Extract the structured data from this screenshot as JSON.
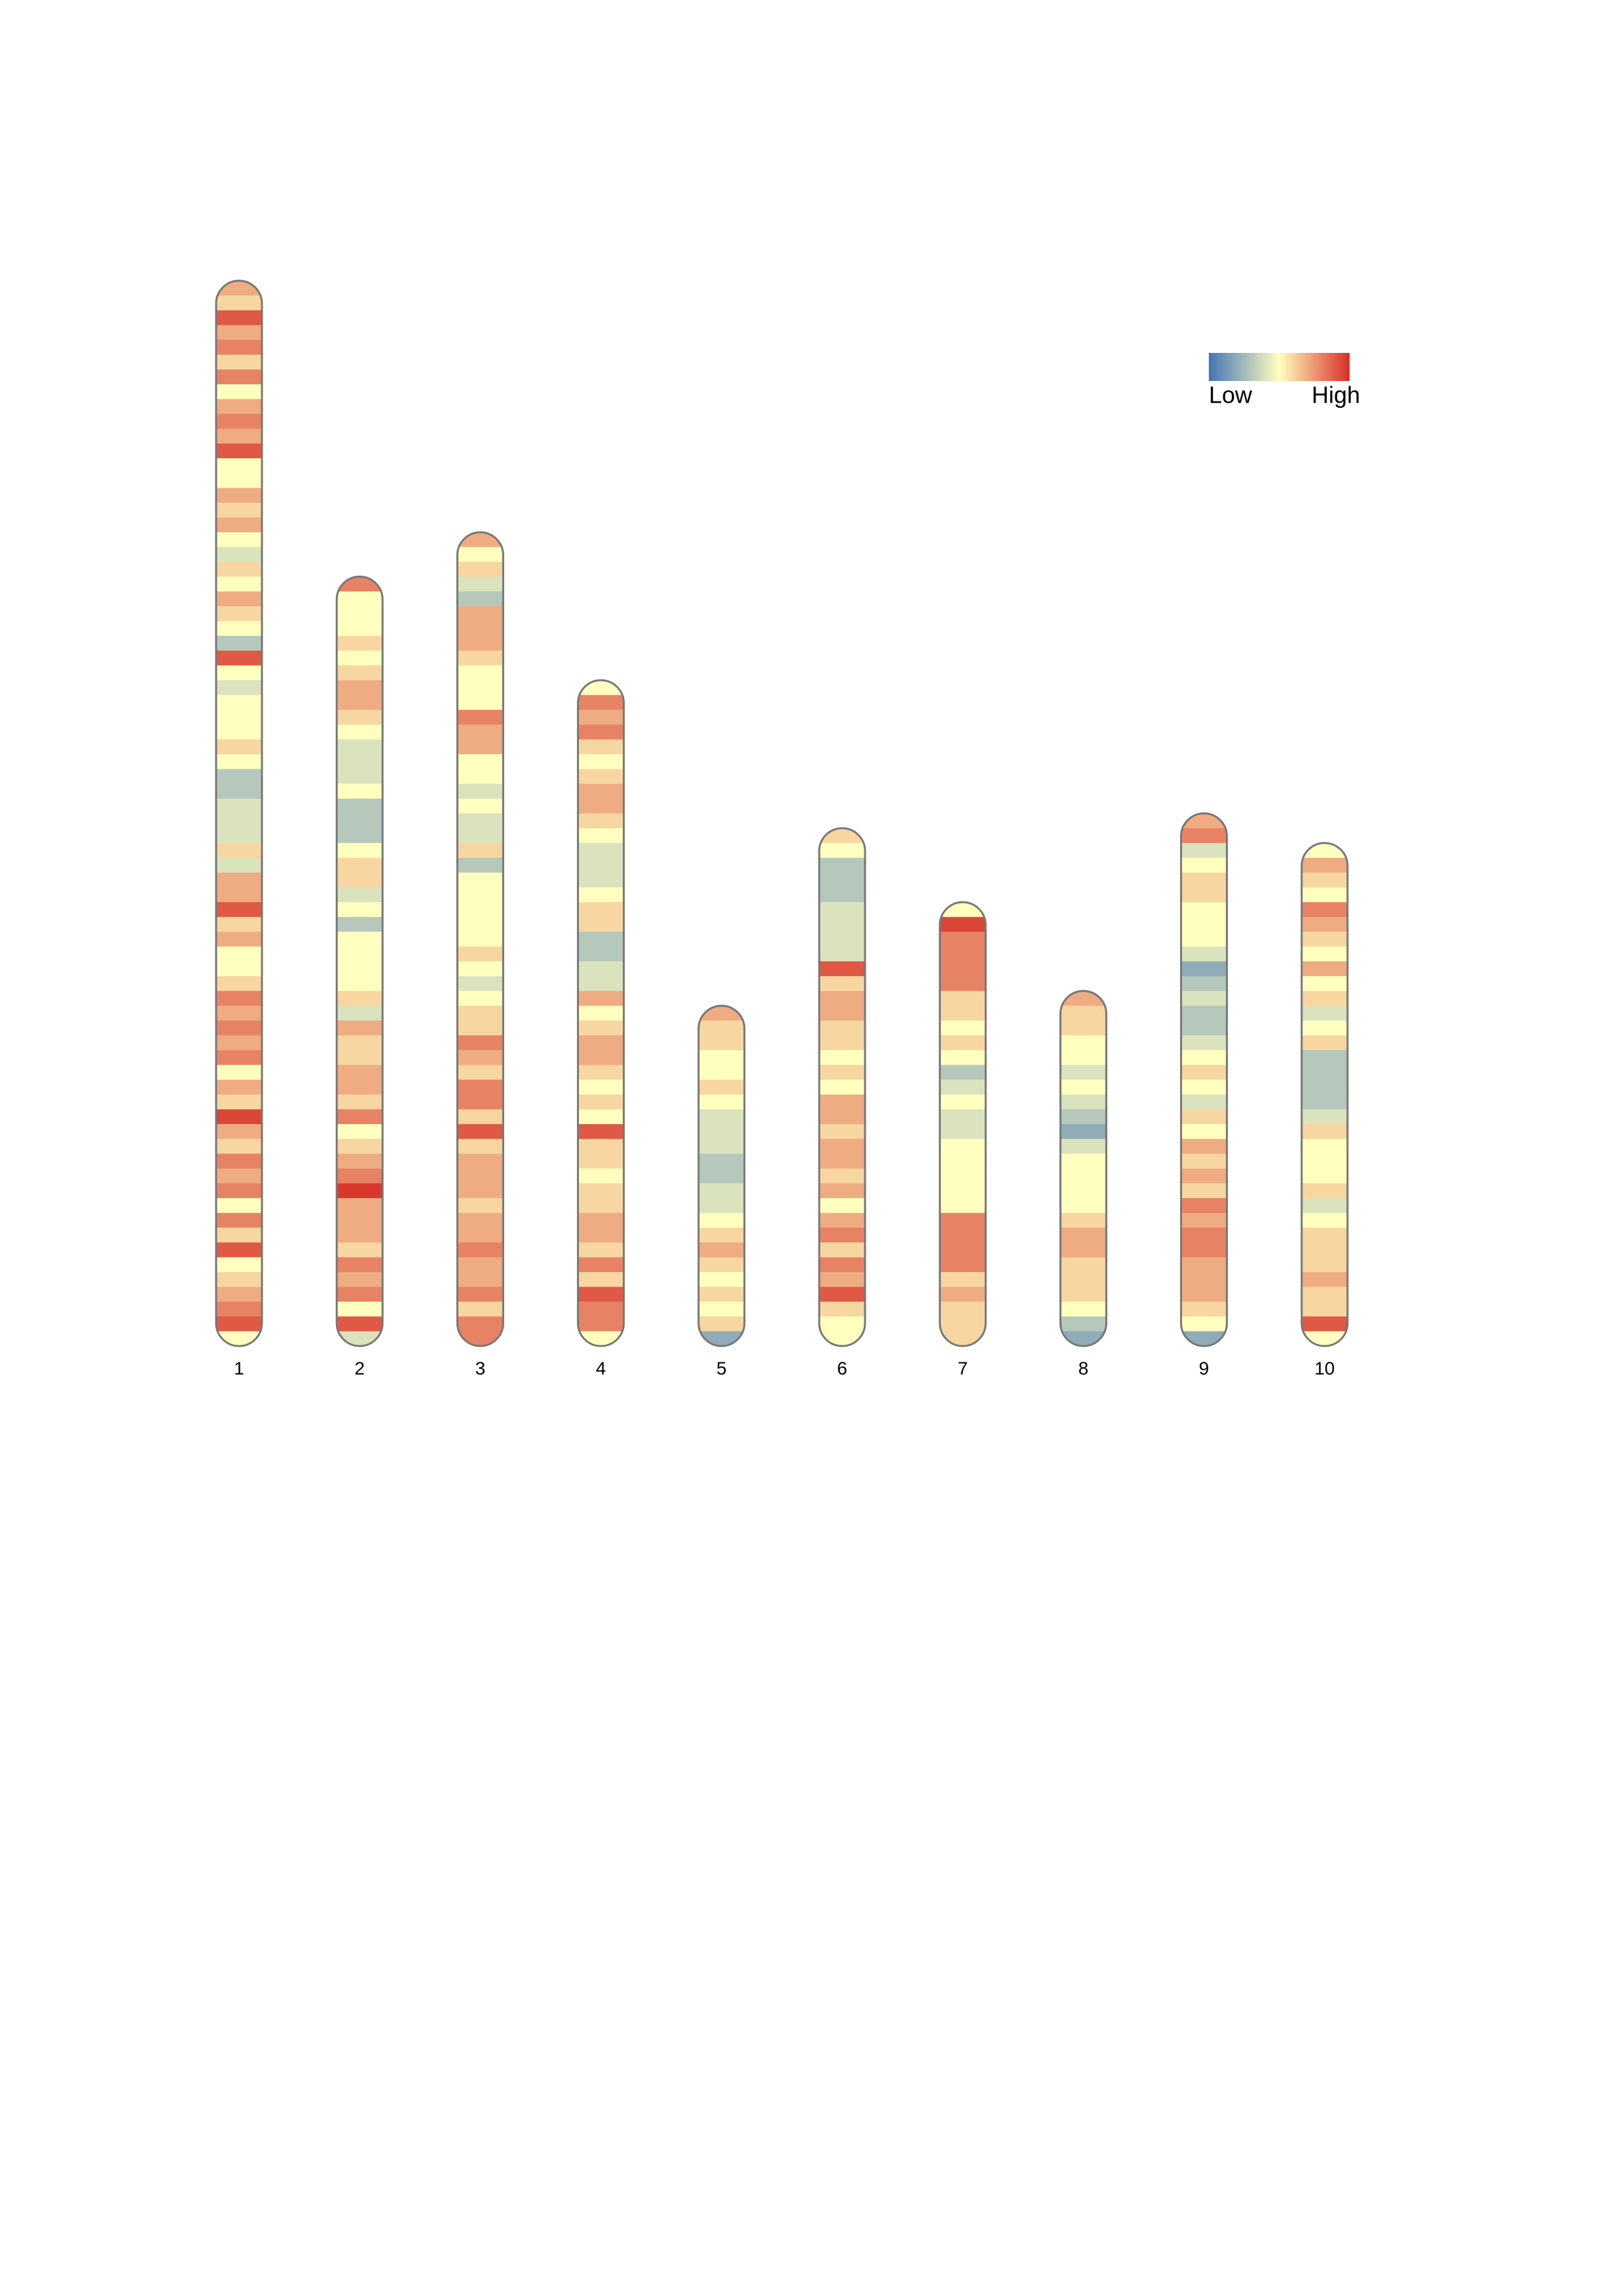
{
  "chart_data": {
    "type": "ideogram-heatmap",
    "colorscale": [
      "#4575b4",
      "#ffffbf",
      "#d73027"
    ],
    "clim": [
      0,
      10
    ],
    "legend": {
      "low": "Low",
      "high": "High"
    },
    "chromosomes": [
      {
        "name": "1",
        "values": [
          7,
          6,
          9,
          7,
          8,
          6,
          8,
          5,
          7,
          8,
          7,
          9,
          5,
          5,
          7,
          6,
          7,
          5,
          4,
          6,
          5,
          7,
          6,
          5,
          3,
          9,
          5,
          4,
          5,
          5,
          5,
          6,
          5,
          3,
          3,
          4,
          4,
          4,
          6,
          4,
          7,
          7,
          9,
          6,
          7,
          5,
          5,
          6,
          8,
          7,
          8,
          7,
          8,
          5,
          7,
          6,
          9.5,
          7,
          6,
          8,
          7,
          8,
          5,
          8,
          6,
          9,
          5,
          6,
          7,
          8,
          9,
          5
        ]
      },
      {
        "name": "2",
        "values": [
          8,
          5,
          5,
          5,
          6,
          5,
          6,
          7,
          7,
          6,
          5,
          4,
          4,
          4,
          5,
          3,
          3,
          3,
          5,
          6,
          6,
          4,
          5,
          3,
          5,
          5,
          5,
          5,
          6,
          4,
          7,
          6,
          6,
          7,
          7,
          6,
          8,
          5,
          6,
          7,
          8,
          9.8,
          7,
          7,
          7,
          6,
          8,
          7,
          8,
          5,
          9,
          4
        ]
      },
      {
        "name": "3",
        "values": [
          7,
          5,
          6,
          4,
          3,
          7,
          7,
          7,
          6,
          5,
          5,
          5,
          8,
          7,
          7,
          5,
          5,
          4,
          5,
          4,
          4,
          6,
          3,
          5,
          5,
          5,
          5,
          5,
          6,
          5,
          4,
          5,
          6,
          6,
          8,
          7,
          6,
          8,
          8,
          6,
          9,
          6,
          7,
          7,
          7,
          6,
          7,
          7,
          8,
          7,
          7,
          8,
          6,
          8,
          8
        ]
      },
      {
        "name": "4",
        "values": [
          5,
          8,
          7,
          8,
          6,
          5,
          6,
          7,
          7,
          6,
          5,
          4,
          4,
          4,
          5,
          6,
          6,
          3,
          3,
          4,
          4,
          7,
          5,
          6,
          7,
          7,
          6,
          5,
          6,
          5,
          9,
          6,
          6,
          5,
          6,
          6,
          7,
          7,
          6,
          8,
          6,
          9,
          8,
          8,
          5
        ]
      },
      {
        "name": "5",
        "values": [
          7,
          6,
          6,
          5,
          5,
          6,
          5,
          4,
          4,
          4,
          3,
          3,
          4,
          4,
          5,
          6,
          7,
          6,
          5,
          6,
          5,
          6,
          2
        ]
      },
      {
        "name": "6",
        "values": [
          6,
          5,
          3,
          3,
          3,
          4,
          4,
          4,
          4,
          9,
          6,
          7,
          7,
          6,
          6,
          5,
          6,
          5,
          7,
          7,
          6,
          7,
          7,
          6,
          7,
          5,
          7,
          8,
          6,
          8,
          7,
          9,
          6,
          5,
          5
        ]
      },
      {
        "name": "7",
        "values": [
          5,
          9.5,
          8,
          8,
          8,
          8,
          6,
          6,
          5,
          6,
          5,
          3,
          4,
          5,
          4,
          4,
          5,
          5,
          5,
          5,
          5,
          8,
          8,
          8,
          8,
          6,
          7,
          6,
          6,
          6
        ]
      },
      {
        "name": "8",
        "values": [
          7,
          6,
          6,
          5,
          5,
          4,
          5,
          4,
          3,
          2,
          4,
          5,
          5,
          5,
          5,
          6,
          7,
          7,
          6,
          6,
          6,
          5,
          3,
          2
        ]
      },
      {
        "name": "9",
        "values": [
          7,
          8,
          4,
          5,
          6,
          6,
          5,
          5,
          5,
          4,
          2,
          3,
          4,
          3,
          3,
          4,
          5,
          6,
          5,
          4,
          6,
          5,
          7,
          6,
          7,
          6,
          8,
          7,
          8,
          8,
          7,
          7,
          7,
          6,
          5,
          2
        ]
      },
      {
        "name": "10",
        "values": [
          5,
          7,
          6,
          5,
          8,
          7,
          6,
          5,
          7,
          5,
          6,
          4,
          5,
          6,
          3,
          3,
          3,
          3,
          4,
          6,
          5,
          5,
          5,
          6,
          4,
          5,
          6,
          6,
          6,
          7,
          6,
          6,
          9,
          5
        ]
      }
    ]
  }
}
